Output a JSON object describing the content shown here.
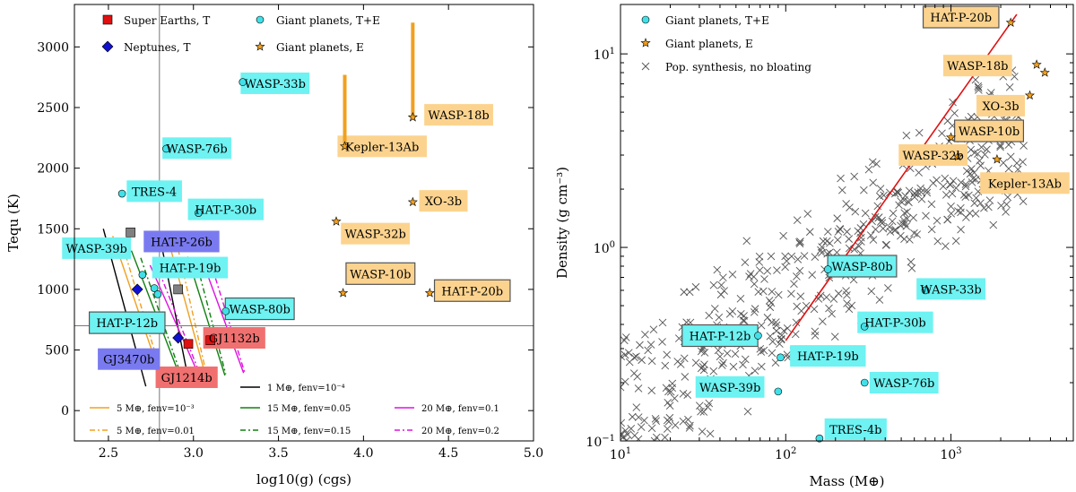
{
  "colors": {
    "cyan": "#40e0e8",
    "cyan_box": "#6ef2f2",
    "orange_box": "#fcd38e",
    "red": "#e01010",
    "red_box": "#f07070",
    "blue": "#1010d0",
    "blue_box": "#7a7af0",
    "orange": "#f0a020",
    "green": "#108010",
    "magenta": "#e010e0",
    "grey": "#808080"
  },
  "chart_data": [
    {
      "type": "scatter",
      "xlabel": "log10(g) (cgs)",
      "ylabel": "Tequ (K)",
      "xlim": [
        2.3,
        5.0
      ],
      "ylim": [
        -250,
        3350
      ],
      "xticks": [
        "2.5",
        "3.0",
        "3.5",
        "4.0",
        "4.5",
        "5.0"
      ],
      "yticks": [
        "0",
        "500",
        "1000",
        "1500",
        "2000",
        "2500",
        "3000"
      ],
      "reference_lines": {
        "vertical_x": 2.8,
        "horizontal_y": 700
      },
      "legend_markers": [
        {
          "name": "Super Earths, T",
          "marker": "square",
          "color": "#e01010"
        },
        {
          "name": "Neptunes, T",
          "marker": "diamond",
          "color": "#1010d0"
        },
        {
          "name": "Giant planets, T+E",
          "marker": "circle",
          "color": "#40e0e8"
        },
        {
          "name": "Giant planets, E",
          "marker": "star",
          "color": "#f0a020"
        }
      ],
      "legend_lines": [
        {
          "mass": "1 M⊕,",
          "fenv": "fenv=10⁻⁴",
          "color": "#000000",
          "dash": "solid"
        },
        {
          "mass": "5 M⊕,",
          "fenv": "fenv=10⁻³",
          "color": "#f0a020",
          "dash": "solid"
        },
        {
          "mass": "5 M⊕,",
          "fenv": "fenv=0.01",
          "color": "#f0a020",
          "dash": "dashdot"
        },
        {
          "mass": "15 M⊕,",
          "fenv": "fenv=0.05",
          "color": "#108010",
          "dash": "solid"
        },
        {
          "mass": "15 M⊕,",
          "fenv": "fenv=0.15",
          "color": "#108010",
          "dash": "dashdot"
        },
        {
          "mass": "20 M⊕,",
          "fenv": "fenv=0.1",
          "color": "#e010e0",
          "dash": "solid"
        },
        {
          "mass": "20 M⊕,",
          "fenv": "fenv=0.2",
          "color": "#e010e0",
          "dash": "dashdot"
        }
      ],
      "points": [
        {
          "name": "WASP-33b",
          "x": 3.29,
          "y": 2710,
          "cat": "giantTE",
          "box": "cyan",
          "lx": 3.48,
          "ly": 2700
        },
        {
          "name": "WASP-76b",
          "x": 2.84,
          "y": 2160,
          "cat": "giantTE",
          "box": "cyan",
          "lx": 3.02,
          "ly": 2165
        },
        {
          "name": "TRES-4",
          "x": 2.58,
          "y": 1790,
          "cat": "giantTE",
          "box": "cyan",
          "lx": 2.77,
          "ly": 1810
        },
        {
          "name": "HAT-P-30b",
          "x": 3.03,
          "y": 1630,
          "cat": "giantTE",
          "box": "cyan",
          "lx": 3.19,
          "ly": 1660
        },
        {
          "name": "WASP-39b",
          "x": 2.7,
          "y": 1120,
          "cat": "giantTE",
          "box": "cyan",
          "lx": 2.43,
          "ly": 1340
        },
        {
          "name": "HAT-P-19b",
          "x": 2.77,
          "y": 1010,
          "cat": "giantTE",
          "box": "cyan",
          "lx": 2.98,
          "ly": 1180
        },
        {
          "name": "HAT-P-12b",
          "x": 2.79,
          "y": 960,
          "cat": "giantTE",
          "box": "cyan",
          "lx": 2.61,
          "ly": 725,
          "border": true
        },
        {
          "name": "WASP-80b",
          "x": 3.19,
          "y": 820,
          "cat": "giantTE",
          "box": "cyan",
          "lx": 3.39,
          "ly": 840,
          "border": true
        },
        {
          "name": "WASP-18b",
          "x": 4.29,
          "y": 2420,
          "cat": "giantE",
          "box": "orange",
          "lx": 4.56,
          "ly": 2440,
          "range": [
            2420,
            3200
          ]
        },
        {
          "name": "Kepler-13Ab",
          "x": 3.89,
          "y": 2180,
          "cat": "giantE",
          "box": "orange",
          "lx": 4.11,
          "ly": 2180,
          "range": [
            2180,
            2770
          ]
        },
        {
          "name": "XO-3b",
          "x": 4.29,
          "y": 1720,
          "cat": "giantE",
          "box": "orange",
          "lx": 4.47,
          "ly": 1730
        },
        {
          "name": "WASP-32b",
          "x": 3.84,
          "y": 1560,
          "cat": "giantE",
          "box": "orange",
          "lx": 4.07,
          "ly": 1460
        },
        {
          "name": "WASP-10b",
          "x": 3.88,
          "y": 970,
          "cat": "giantE",
          "box": "orange",
          "lx": 4.1,
          "ly": 1130,
          "border": true
        },
        {
          "name": "HAT-P-20b",
          "x": 4.39,
          "y": 970,
          "cat": "giantE",
          "box": "orange",
          "lx": 4.64,
          "ly": 990,
          "border": true
        },
        {
          "name": "GJ1132b",
          "x": 3.1,
          "y": 580,
          "cat": "superearth",
          "box": "red",
          "lx": 3.24,
          "ly": 600
        },
        {
          "name": "GJ1214b",
          "x": 2.97,
          "y": 550,
          "cat": "superearth",
          "box": "red",
          "lx": 2.96,
          "ly": 275
        },
        {
          "name": "HAT-P-26b",
          "x": 2.67,
          "y": 1000,
          "cat": "neptune",
          "box": "blue",
          "lx": 2.93,
          "ly": 1395
        },
        {
          "name": "GJ3470b",
          "x": 2.91,
          "y": 600,
          "cat": "neptune",
          "box": "blue",
          "lx": 2.62,
          "ly": 425
        },
        {
          "name": "",
          "x": 2.63,
          "y": 1470,
          "cat": "greysq"
        },
        {
          "name": "",
          "x": 2.91,
          "y": 1000,
          "cat": "greysq"
        }
      ]
    },
    {
      "type": "scatter",
      "xlabel": "Mass (M⊕)",
      "ylabel": "Density (g cm⁻³)",
      "xscale": "log",
      "yscale": "log",
      "xlim": [
        10,
        5500
      ],
      "ylim": [
        0.1,
        18
      ],
      "xticks": [
        {
          "value": 10,
          "label": "10",
          "exp": "1"
        },
        {
          "value": 100,
          "label": "10",
          "exp": "2"
        },
        {
          "value": 1000,
          "label": "10",
          "exp": "3"
        }
      ],
      "yticks": [
        {
          "value": 0.1,
          "label": "10",
          "exp": "−1"
        },
        {
          "value": 1,
          "label": "10",
          "exp": "0"
        },
        {
          "value": 10,
          "label": "10",
          "exp": "1"
        }
      ],
      "legend": [
        {
          "name": "Giant planets, T+E",
          "marker": "circle",
          "color": "#40e0e8"
        },
        {
          "name": "Giant planets, E",
          "marker": "star",
          "color": "#f0a020"
        },
        {
          "name": "Pop. synthesis, no bloating",
          "marker": "x",
          "color": "#555555"
        }
      ],
      "fit_line": {
        "x": [
          100,
          2500
        ],
        "y": [
          0.33,
          16
        ]
      },
      "points": [
        {
          "name": "HAT-P-20b",
          "x": 2300,
          "y": 14.5,
          "cat": "giantE",
          "box": "orange",
          "lx": 1150,
          "ly": 15.5,
          "border": true
        },
        {
          "name": "WASP-18b",
          "x": 3300,
          "y": 8.8,
          "cat": "giantE",
          "box": "orange",
          "lx": 1450,
          "ly": 8.7
        },
        {
          "name": "",
          "x": 3700,
          "y": 8.0,
          "cat": "giantE"
        },
        {
          "name": "XO-3b",
          "x": 3000,
          "y": 6.1,
          "cat": "giantE",
          "box": "orange",
          "lx": 2000,
          "ly": 5.4
        },
        {
          "name": "WASP-10b",
          "x": 1000,
          "y": 3.7,
          "cat": "giantE",
          "box": "orange",
          "lx": 1700,
          "ly": 4.0,
          "border": true
        },
        {
          "name": "WASP-32b",
          "x": 1100,
          "y": 2.95,
          "cat": "giantE",
          "box": "orange",
          "lx": 780,
          "ly": 3.0
        },
        {
          "name": "Kepler-13Ab",
          "x": 1900,
          "y": 2.85,
          "cat": "giantE",
          "box": "orange",
          "lx": 2800,
          "ly": 2.15
        },
        {
          "name": "WASP-80b",
          "x": 180,
          "y": 0.77,
          "cat": "giantTE",
          "box": "cyan",
          "lx": 290,
          "ly": 0.8,
          "border": true
        },
        {
          "name": "WASP-33b",
          "x": 700,
          "y": 0.6,
          "cat": "giantTE",
          "box": "cyan",
          "lx": 1000,
          "ly": 0.61
        },
        {
          "name": "HAT-P-30b",
          "x": 300,
          "y": 0.39,
          "cat": "giantTE",
          "box": "cyan",
          "lx": 460,
          "ly": 0.41
        },
        {
          "name": "HAT-P-12b",
          "x": 68,
          "y": 0.35,
          "cat": "giantTE",
          "box": "cyan",
          "lx": 40,
          "ly": 0.35,
          "border": true
        },
        {
          "name": "HAT-P-19b",
          "x": 93,
          "y": 0.27,
          "cat": "giantTE",
          "box": "cyan",
          "lx": 180,
          "ly": 0.275
        },
        {
          "name": "WASP-76b",
          "x": 300,
          "y": 0.2,
          "cat": "giantTE",
          "box": "cyan",
          "lx": 520,
          "ly": 0.2
        },
        {
          "name": "WASP-39b",
          "x": 90,
          "y": 0.18,
          "cat": "giantTE",
          "box": "cyan",
          "lx": 46,
          "ly": 0.19
        },
        {
          "name": "TRES-4b",
          "x": 160,
          "y": 0.103,
          "cat": "giantTE",
          "box": "cyan",
          "lx": 265,
          "ly": 0.115
        }
      ]
    }
  ]
}
